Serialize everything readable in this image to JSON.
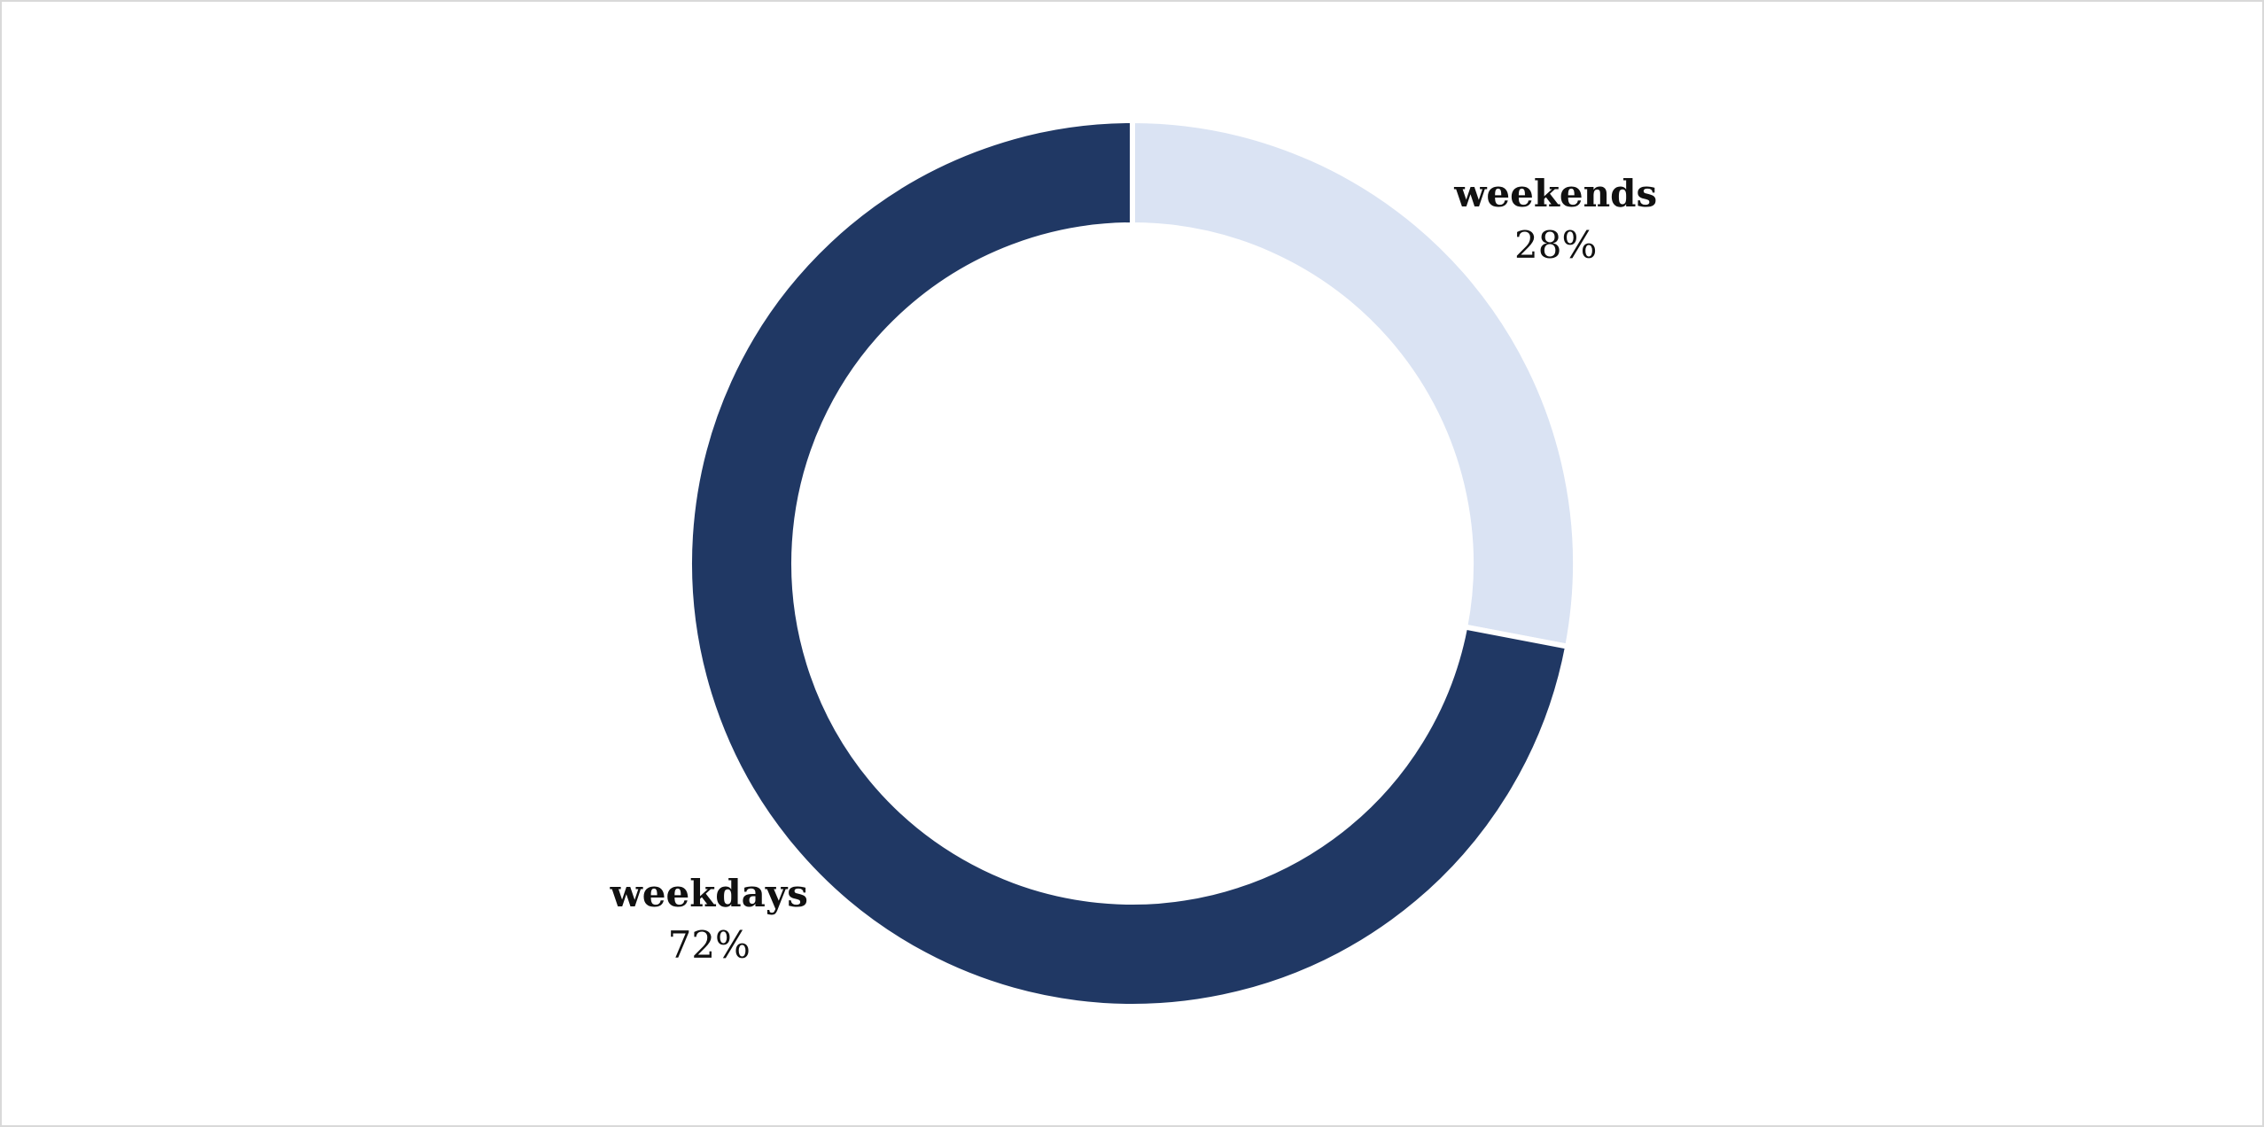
{
  "chart_data": {
    "type": "pie",
    "style": "donut",
    "start": "12 o'clock",
    "direction": "clockwise",
    "slices": [
      {
        "label": "weekends",
        "value": 28,
        "value_label": "28%",
        "color": "#dae3f3"
      },
      {
        "label": "weekdays",
        "value": 72,
        "value_label": "72%",
        "color": "#203864"
      }
    ],
    "slice_border_color": "#ffffff",
    "legend": "none"
  }
}
